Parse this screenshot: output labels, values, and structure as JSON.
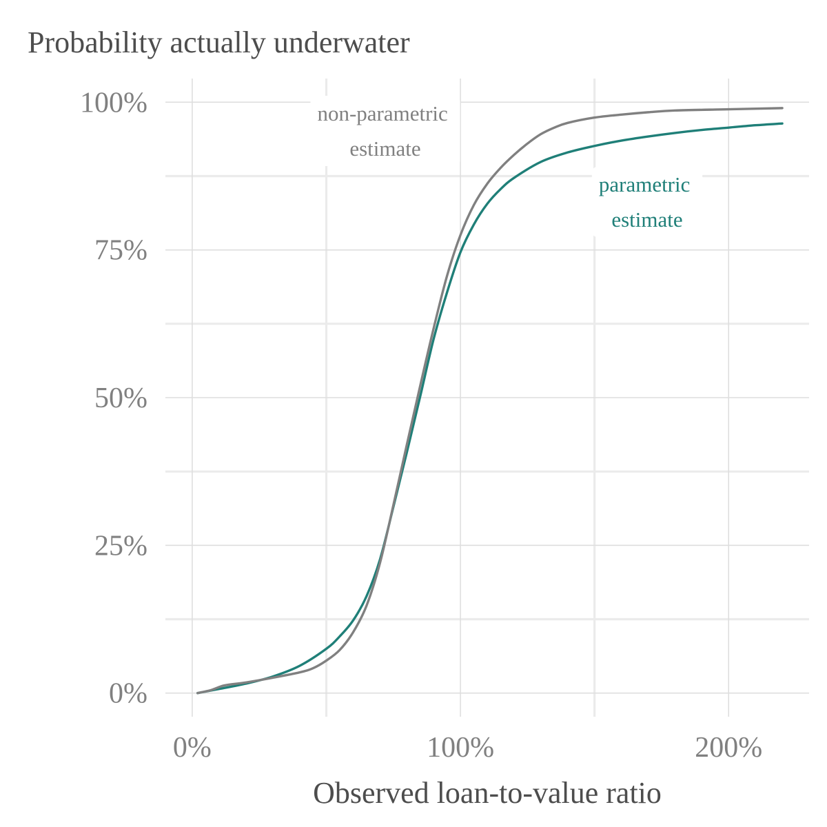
{
  "chart_data": {
    "type": "line",
    "title": "Probability actually underwater",
    "xlabel": "Observed loan-to-value ratio",
    "ylabel": "",
    "xlim": [
      -10,
      230
    ],
    "ylim": [
      -4,
      104
    ],
    "x_ticks": [
      0,
      100,
      200
    ],
    "x_tick_labels": [
      "0%",
      "100%",
      "200%"
    ],
    "y_ticks": [
      0,
      25,
      50,
      75,
      100
    ],
    "y_tick_labels": [
      "0%",
      "25%",
      "50%",
      "75%",
      "100%"
    ],
    "x_minor_ticks": [
      50,
      150
    ],
    "y_minor_ticks": [
      12.5,
      37.5,
      62.5,
      87.5
    ],
    "grid": true,
    "legend": "none",
    "series": [
      {
        "color": "#1f7f78",
        "x": [
          2,
          10,
          20,
          30,
          40,
          50,
          55,
          60,
          65,
          70,
          75,
          80,
          85,
          90,
          95,
          100,
          105,
          110,
          115,
          120,
          130,
          140,
          150,
          160,
          170,
          180,
          190,
          200,
          210,
          220
        ],
        "y": [
          0,
          0.7,
          1.6,
          2.8,
          4.6,
          7.5,
          9.6,
          12.3,
          16.4,
          22.6,
          31.5,
          40.7,
          50.2,
          59.9,
          67.8,
          74.6,
          79.3,
          82.8,
          85.3,
          87.2,
          89.9,
          91.5,
          92.6,
          93.5,
          94.2,
          94.8,
          95.3,
          95.7,
          96.1,
          96.4
        ]
      },
      {
        "color": "#808080",
        "x": [
          2,
          7,
          12,
          20,
          30,
          40,
          45,
          50,
          55,
          60,
          65,
          70,
          75,
          80,
          85,
          90,
          95,
          100,
          105,
          110,
          115,
          120,
          125,
          130,
          135,
          140,
          150,
          160,
          170,
          180,
          200,
          220
        ],
        "y": [
          0,
          0.5,
          1.3,
          1.8,
          2.6,
          3.5,
          4.2,
          5.5,
          7.3,
          10.3,
          14.8,
          22.0,
          31.8,
          42.0,
          52.0,
          61.7,
          70.6,
          77.5,
          82.6,
          86.2,
          88.9,
          91.1,
          93.0,
          94.6,
          95.7,
          96.5,
          97.4,
          97.9,
          98.3,
          98.6,
          98.8,
          99.0
        ]
      }
    ],
    "annotations": [
      {
        "lines": [
          "non-parametric",
          "estimate"
        ],
        "color": "#808080"
      },
      {
        "lines": [
          "parametric",
          "estimate"
        ],
        "color": "#1f7f78"
      }
    ]
  }
}
